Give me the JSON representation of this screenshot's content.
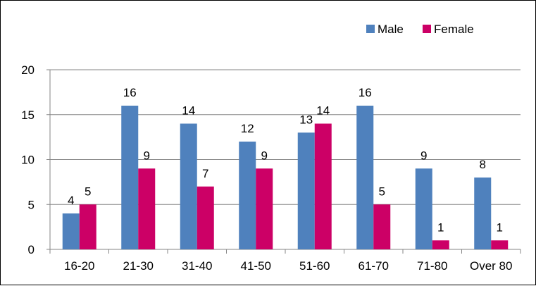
{
  "chart_data": {
    "type": "bar",
    "categories": [
      "16-20",
      "21-30",
      "31-40",
      "41-50",
      "51-60",
      "61-70",
      "71-80",
      "Over 80"
    ],
    "series": [
      {
        "name": "Male",
        "values": [
          4,
          16,
          14,
          12,
          13,
          16,
          9,
          8
        ],
        "color": "#4F81BD"
      },
      {
        "name": "Female",
        "values": [
          5,
          9,
          7,
          9,
          14,
          5,
          1,
          1
        ],
        "color": "#CC0066"
      }
    ],
    "title": "",
    "xlabel": "",
    "ylabel": "",
    "ylim": [
      0,
      20
    ],
    "yticks": [
      "0",
      "5",
      "10",
      "15",
      "20"
    ],
    "grid": true,
    "legend_position": "top-right",
    "data_labels": true
  }
}
